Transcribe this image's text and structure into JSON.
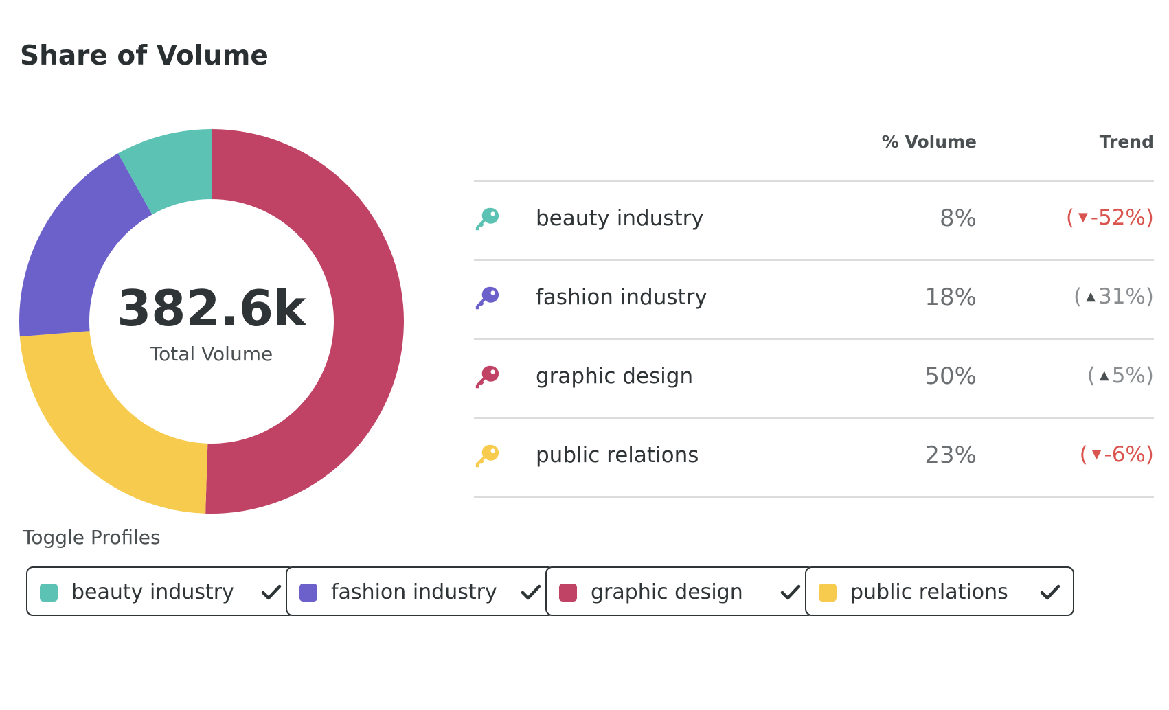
{
  "title": "Share of Volume",
  "total": {
    "value": "382.6k",
    "label": "Total Volume"
  },
  "table": {
    "headers": {
      "volume": "% Volume",
      "trend": "Trend"
    },
    "rows": [
      {
        "name": "beauty industry",
        "pct": "8%",
        "trend_open": "(",
        "trend_value": "-52%",
        "trend_close": ")",
        "direction": "down",
        "color": "#5bc2b4",
        "icon": "key-icon"
      },
      {
        "name": "fashion industry",
        "pct": "18%",
        "trend_open": "(",
        "trend_value": "31%",
        "trend_close": ")",
        "direction": "up",
        "color": "#6c61cb",
        "icon": "key-icon"
      },
      {
        "name": "graphic design",
        "pct": "50%",
        "trend_open": "(",
        "trend_value": "5%",
        "trend_close": ")",
        "direction": "up",
        "color": "#c04365",
        "icon": "key-icon"
      },
      {
        "name": "public relations",
        "pct": "23%",
        "trend_open": "(",
        "trend_value": "-6%",
        "trend_close": ")",
        "direction": "down",
        "color": "#f7cb4d",
        "icon": "key-icon"
      }
    ]
  },
  "toggle": {
    "title": "Toggle Profiles",
    "items": [
      {
        "label": "beauty industry",
        "color": "#5bc2b4",
        "checked": true,
        "icon": "check-icon"
      },
      {
        "label": "fashion industry",
        "color": "#6c61cb",
        "checked": true,
        "icon": "check-icon"
      },
      {
        "label": "graphic design",
        "color": "#c04365",
        "checked": true,
        "icon": "check-icon"
      },
      {
        "label": "public relations",
        "color": "#f7cb4d",
        "checked": true,
        "icon": "check-icon"
      }
    ]
  },
  "chart_data": {
    "type": "pie",
    "title": "Share of Volume",
    "categories": [
      "beauty industry",
      "fashion industry",
      "graphic design",
      "public relations"
    ],
    "values": [
      8,
      18,
      50,
      23
    ],
    "unit": "%",
    "colors": [
      "#5bc2b4",
      "#6c61cb",
      "#c04365",
      "#f7cb4d"
    ],
    "donut": true,
    "center_value": "382.6k",
    "center_label": "Total Volume",
    "legend": "none"
  }
}
